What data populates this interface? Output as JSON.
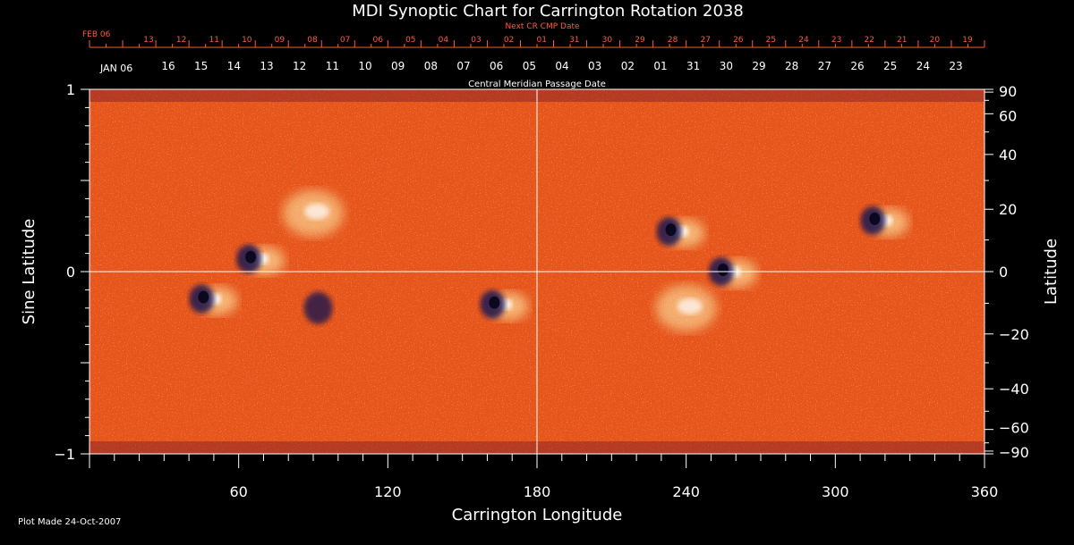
{
  "chart_data": {
    "type": "heatmap",
    "title": "MDI Synoptic Chart for Carrington Rotation 2038",
    "xlabel": "Carrington Longitude",
    "ylabel_left": "Sine Latitude",
    "ylabel_right": "Latitude",
    "xlim": [
      0,
      360
    ],
    "ylim": [
      -1,
      1
    ],
    "x_ticks": [
      60,
      120,
      180,
      240,
      300,
      360
    ],
    "y_ticks_left": [
      {
        "v": 1,
        "label": "1"
      },
      {
        "v": 0,
        "label": "0"
      },
      {
        "v": -1,
        "label": "−1"
      }
    ],
    "y_ticks_right": [
      {
        "lat": 90,
        "label": "90"
      },
      {
        "lat": 60,
        "label": "60"
      },
      {
        "lat": 40,
        "label": "40"
      },
      {
        "lat": 20,
        "label": "20"
      },
      {
        "lat": 0,
        "label": "0"
      },
      {
        "lat": -20,
        "label": "−20"
      },
      {
        "lat": -40,
        "label": "−40"
      },
      {
        "lat": -60,
        "label": "−60"
      },
      {
        "lat": -90,
        "label": "−90"
      }
    ],
    "top_axis_red": {
      "caption": "Next CR CMP Date",
      "month_label": "FEB 06",
      "labels": [
        "13",
        "12",
        "11",
        "10",
        "09",
        "08",
        "07",
        "06",
        "05",
        "04",
        "03",
        "02",
        "01",
        "31",
        "30",
        "29",
        "28",
        "27",
        "26",
        "25",
        "24",
        "23",
        "22",
        "21",
        "20",
        "19"
      ]
    },
    "top_axis_white": {
      "caption": "Central Meridian Passage Date",
      "month_label": "JAN 06",
      "labels": [
        "16",
        "15",
        "14",
        "13",
        "12",
        "11",
        "10",
        "09",
        "08",
        "07",
        "06",
        "05",
        "04",
        "03",
        "02",
        "01",
        "31",
        "30",
        "29",
        "28",
        "27",
        "26",
        "25",
        "24",
        "23"
      ]
    },
    "active_regions": [
      {
        "lon": 67,
        "sinlat": 0.07,
        "polarity": "mixed"
      },
      {
        "lon": 48,
        "sinlat": -0.15,
        "polarity": "mixed"
      },
      {
        "lon": 92,
        "sinlat": -0.2,
        "polarity": "negative"
      },
      {
        "lon": 90,
        "sinlat": 0.32,
        "polarity": "positive"
      },
      {
        "lon": 165,
        "sinlat": -0.18,
        "polarity": "mixed"
      },
      {
        "lon": 236,
        "sinlat": 0.22,
        "polarity": "mixed"
      },
      {
        "lon": 257,
        "sinlat": 0.0,
        "polarity": "mixed"
      },
      {
        "lon": 318,
        "sinlat": 0.28,
        "polarity": "mixed"
      },
      {
        "lon": 240,
        "sinlat": -0.2,
        "polarity": "positive"
      }
    ],
    "colors": {
      "background": "#000000",
      "field_base": "#e8541a",
      "positive": "#fff2b0",
      "negative": "#1a1450",
      "gridline": "#ffffff",
      "red_axis": "#ff5a3c"
    }
  },
  "footer": {
    "plot_made": "Plot Made 24-Oct-2007"
  }
}
